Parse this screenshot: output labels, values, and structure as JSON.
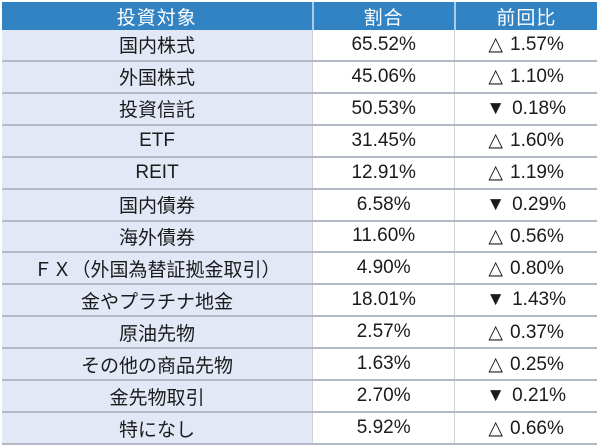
{
  "chart_data": {
    "type": "table",
    "title": "",
    "columns": [
      "投資対象",
      "割合",
      "前回比"
    ],
    "rows": [
      {
        "label": "国内株式",
        "ratio": "65.52%",
        "ratio_value": 65.52,
        "change_symbol": "△",
        "change": "1.57%",
        "change_value": 1.57,
        "direction": "up"
      },
      {
        "label": "外国株式",
        "ratio": "45.06%",
        "ratio_value": 45.06,
        "change_symbol": "△",
        "change": "1.10%",
        "change_value": 1.1,
        "direction": "up"
      },
      {
        "label": "投資信託",
        "ratio": "50.53%",
        "ratio_value": 50.53,
        "change_symbol": "▼",
        "change": "0.18%",
        "change_value": -0.18,
        "direction": "down"
      },
      {
        "label": "ETF",
        "ratio": "31.45%",
        "ratio_value": 31.45,
        "change_symbol": "△",
        "change": "1.60%",
        "change_value": 1.6,
        "direction": "up"
      },
      {
        "label": "REIT",
        "ratio": "12.91%",
        "ratio_value": 12.91,
        "change_symbol": "△",
        "change": "1.19%",
        "change_value": 1.19,
        "direction": "up"
      },
      {
        "label": "国内債券",
        "ratio": "6.58%",
        "ratio_value": 6.58,
        "change_symbol": "▼",
        "change": "0.29%",
        "change_value": -0.29,
        "direction": "down"
      },
      {
        "label": "海外債券",
        "ratio": "11.60%",
        "ratio_value": 11.6,
        "change_symbol": "△",
        "change": "0.56%",
        "change_value": 0.56,
        "direction": "up"
      },
      {
        "label": "ＦＸ（外国為替証拠金取引）",
        "ratio": "4.90%",
        "ratio_value": 4.9,
        "change_symbol": "△",
        "change": "0.80%",
        "change_value": 0.8,
        "direction": "up"
      },
      {
        "label": "金やプラチナ地金",
        "ratio": "18.01%",
        "ratio_value": 18.01,
        "change_symbol": "▼",
        "change": "1.43%",
        "change_value": -1.43,
        "direction": "down"
      },
      {
        "label": "原油先物",
        "ratio": "2.57%",
        "ratio_value": 2.57,
        "change_symbol": "△",
        "change": "0.37%",
        "change_value": 0.37,
        "direction": "up"
      },
      {
        "label": "その他の商品先物",
        "ratio": "1.63%",
        "ratio_value": 1.63,
        "change_symbol": "△",
        "change": "0.25%",
        "change_value": 0.25,
        "direction": "up"
      },
      {
        "label": "金先物取引",
        "ratio": "2.70%",
        "ratio_value": 2.7,
        "change_symbol": "▼",
        "change": "0.21%",
        "change_value": -0.21,
        "direction": "down"
      },
      {
        "label": "特になし",
        "ratio": "5.92%",
        "ratio_value": 5.92,
        "change_symbol": "△",
        "change": "0.66%",
        "change_value": 0.66,
        "direction": "up"
      }
    ]
  },
  "colors": {
    "header_bg": "#3183C4",
    "header_text": "#FFFFFF",
    "header_divider": "#A9CDE9",
    "label_cell_bg": "#E2E8F6",
    "value_cell_bg": "#FFFFFF",
    "row_border": "#B3B9C6",
    "column_border": "#CDD2DB",
    "text": "#1B1B1B",
    "page_bg": "#FFFFFF"
  }
}
